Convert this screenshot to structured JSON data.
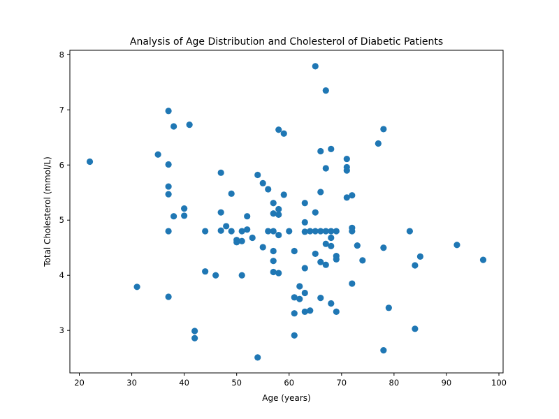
{
  "chart_data": {
    "type": "scatter",
    "title": "Analysis of Age Distribution and Cholesterol of Diabetic Patients",
    "xlabel": "Age (years)",
    "ylabel": "Total Cholesterol (mmol/L)",
    "xlim": [
      18.2,
      100.8
    ],
    "ylim": [
      2.23,
      8.08
    ],
    "xticks": [
      20,
      30,
      40,
      50,
      60,
      70,
      80,
      90,
      100
    ],
    "yticks": [
      3,
      4,
      5,
      6,
      7,
      8
    ],
    "grid": false,
    "color": "#1f77b4",
    "points": [
      [
        22,
        6.06
      ],
      [
        31,
        3.79
      ],
      [
        35,
        6.19
      ],
      [
        37,
        6.98
      ],
      [
        37,
        6.01
      ],
      [
        37,
        5.61
      ],
      [
        37,
        5.47
      ],
      [
        37,
        4.8
      ],
      [
        37,
        3.61
      ],
      [
        38,
        6.7
      ],
      [
        38,
        5.07
      ],
      [
        40,
        5.21
      ],
      [
        40,
        5.08
      ],
      [
        41,
        6.73
      ],
      [
        42,
        2.99
      ],
      [
        42,
        2.86
      ],
      [
        44,
        4.8
      ],
      [
        44,
        4.07
      ],
      [
        46,
        4.0
      ],
      [
        47,
        5.86
      ],
      [
        47,
        5.14
      ],
      [
        47,
        4.81
      ],
      [
        48,
        4.89
      ],
      [
        49,
        5.48
      ],
      [
        49,
        4.8
      ],
      [
        50,
        4.64
      ],
      [
        50,
        4.6
      ],
      [
        51,
        4.8
      ],
      [
        51,
        4.62
      ],
      [
        51,
        4.0
      ],
      [
        52,
        5.07
      ],
      [
        52,
        4.83
      ],
      [
        53,
        4.68
      ],
      [
        54,
        5.82
      ],
      [
        54,
        2.51
      ],
      [
        55,
        5.67
      ],
      [
        55,
        4.51
      ],
      [
        56,
        5.56
      ],
      [
        56,
        4.8
      ],
      [
        57,
        5.31
      ],
      [
        57,
        5.12
      ],
      [
        57,
        4.8
      ],
      [
        57,
        4.44
      ],
      [
        57,
        4.26
      ],
      [
        57,
        4.06
      ],
      [
        58,
        6.64
      ],
      [
        58,
        5.2
      ],
      [
        58,
        5.1
      ],
      [
        58,
        4.73
      ],
      [
        58,
        4.04
      ],
      [
        59,
        6.57
      ],
      [
        59,
        5.46
      ],
      [
        60,
        4.8
      ],
      [
        61,
        4.44
      ],
      [
        61,
        3.6
      ],
      [
        61,
        3.31
      ],
      [
        61,
        2.91
      ],
      [
        62,
        3.8
      ],
      [
        62,
        3.57
      ],
      [
        63,
        5.31
      ],
      [
        63,
        4.96
      ],
      [
        63,
        4.79
      ],
      [
        63,
        4.13
      ],
      [
        63,
        3.68
      ],
      [
        63,
        3.34
      ],
      [
        64,
        4.8
      ],
      [
        64,
        3.36
      ],
      [
        65,
        7.79
      ],
      [
        65,
        5.14
      ],
      [
        65,
        4.8
      ],
      [
        65,
        4.39
      ],
      [
        66,
        6.25
      ],
      [
        66,
        5.51
      ],
      [
        66,
        4.8
      ],
      [
        66,
        4.24
      ],
      [
        66,
        3.59
      ],
      [
        67,
        7.35
      ],
      [
        67,
        5.94
      ],
      [
        67,
        4.8
      ],
      [
        67,
        4.57
      ],
      [
        67,
        4.19
      ],
      [
        68,
        6.29
      ],
      [
        68,
        4.8
      ],
      [
        68,
        4.68
      ],
      [
        68,
        4.53
      ],
      [
        68,
        3.49
      ],
      [
        69,
        4.8
      ],
      [
        69,
        4.35
      ],
      [
        69,
        4.29
      ],
      [
        69,
        3.34
      ],
      [
        71,
        6.11
      ],
      [
        71,
        5.96
      ],
      [
        71,
        5.9
      ],
      [
        71,
        5.41
      ],
      [
        72,
        5.45
      ],
      [
        72,
        4.86
      ],
      [
        72,
        4.8
      ],
      [
        72,
        3.85
      ],
      [
        73,
        4.54
      ],
      [
        74,
        4.27
      ],
      [
        77,
        6.39
      ],
      [
        78,
        6.65
      ],
      [
        78,
        4.5
      ],
      [
        78,
        2.64
      ],
      [
        79,
        3.41
      ],
      [
        83,
        4.8
      ],
      [
        84,
        4.18
      ],
      [
        84,
        3.03
      ],
      [
        85,
        4.34
      ],
      [
        92,
        4.55
      ],
      [
        97,
        4.28
      ]
    ]
  }
}
